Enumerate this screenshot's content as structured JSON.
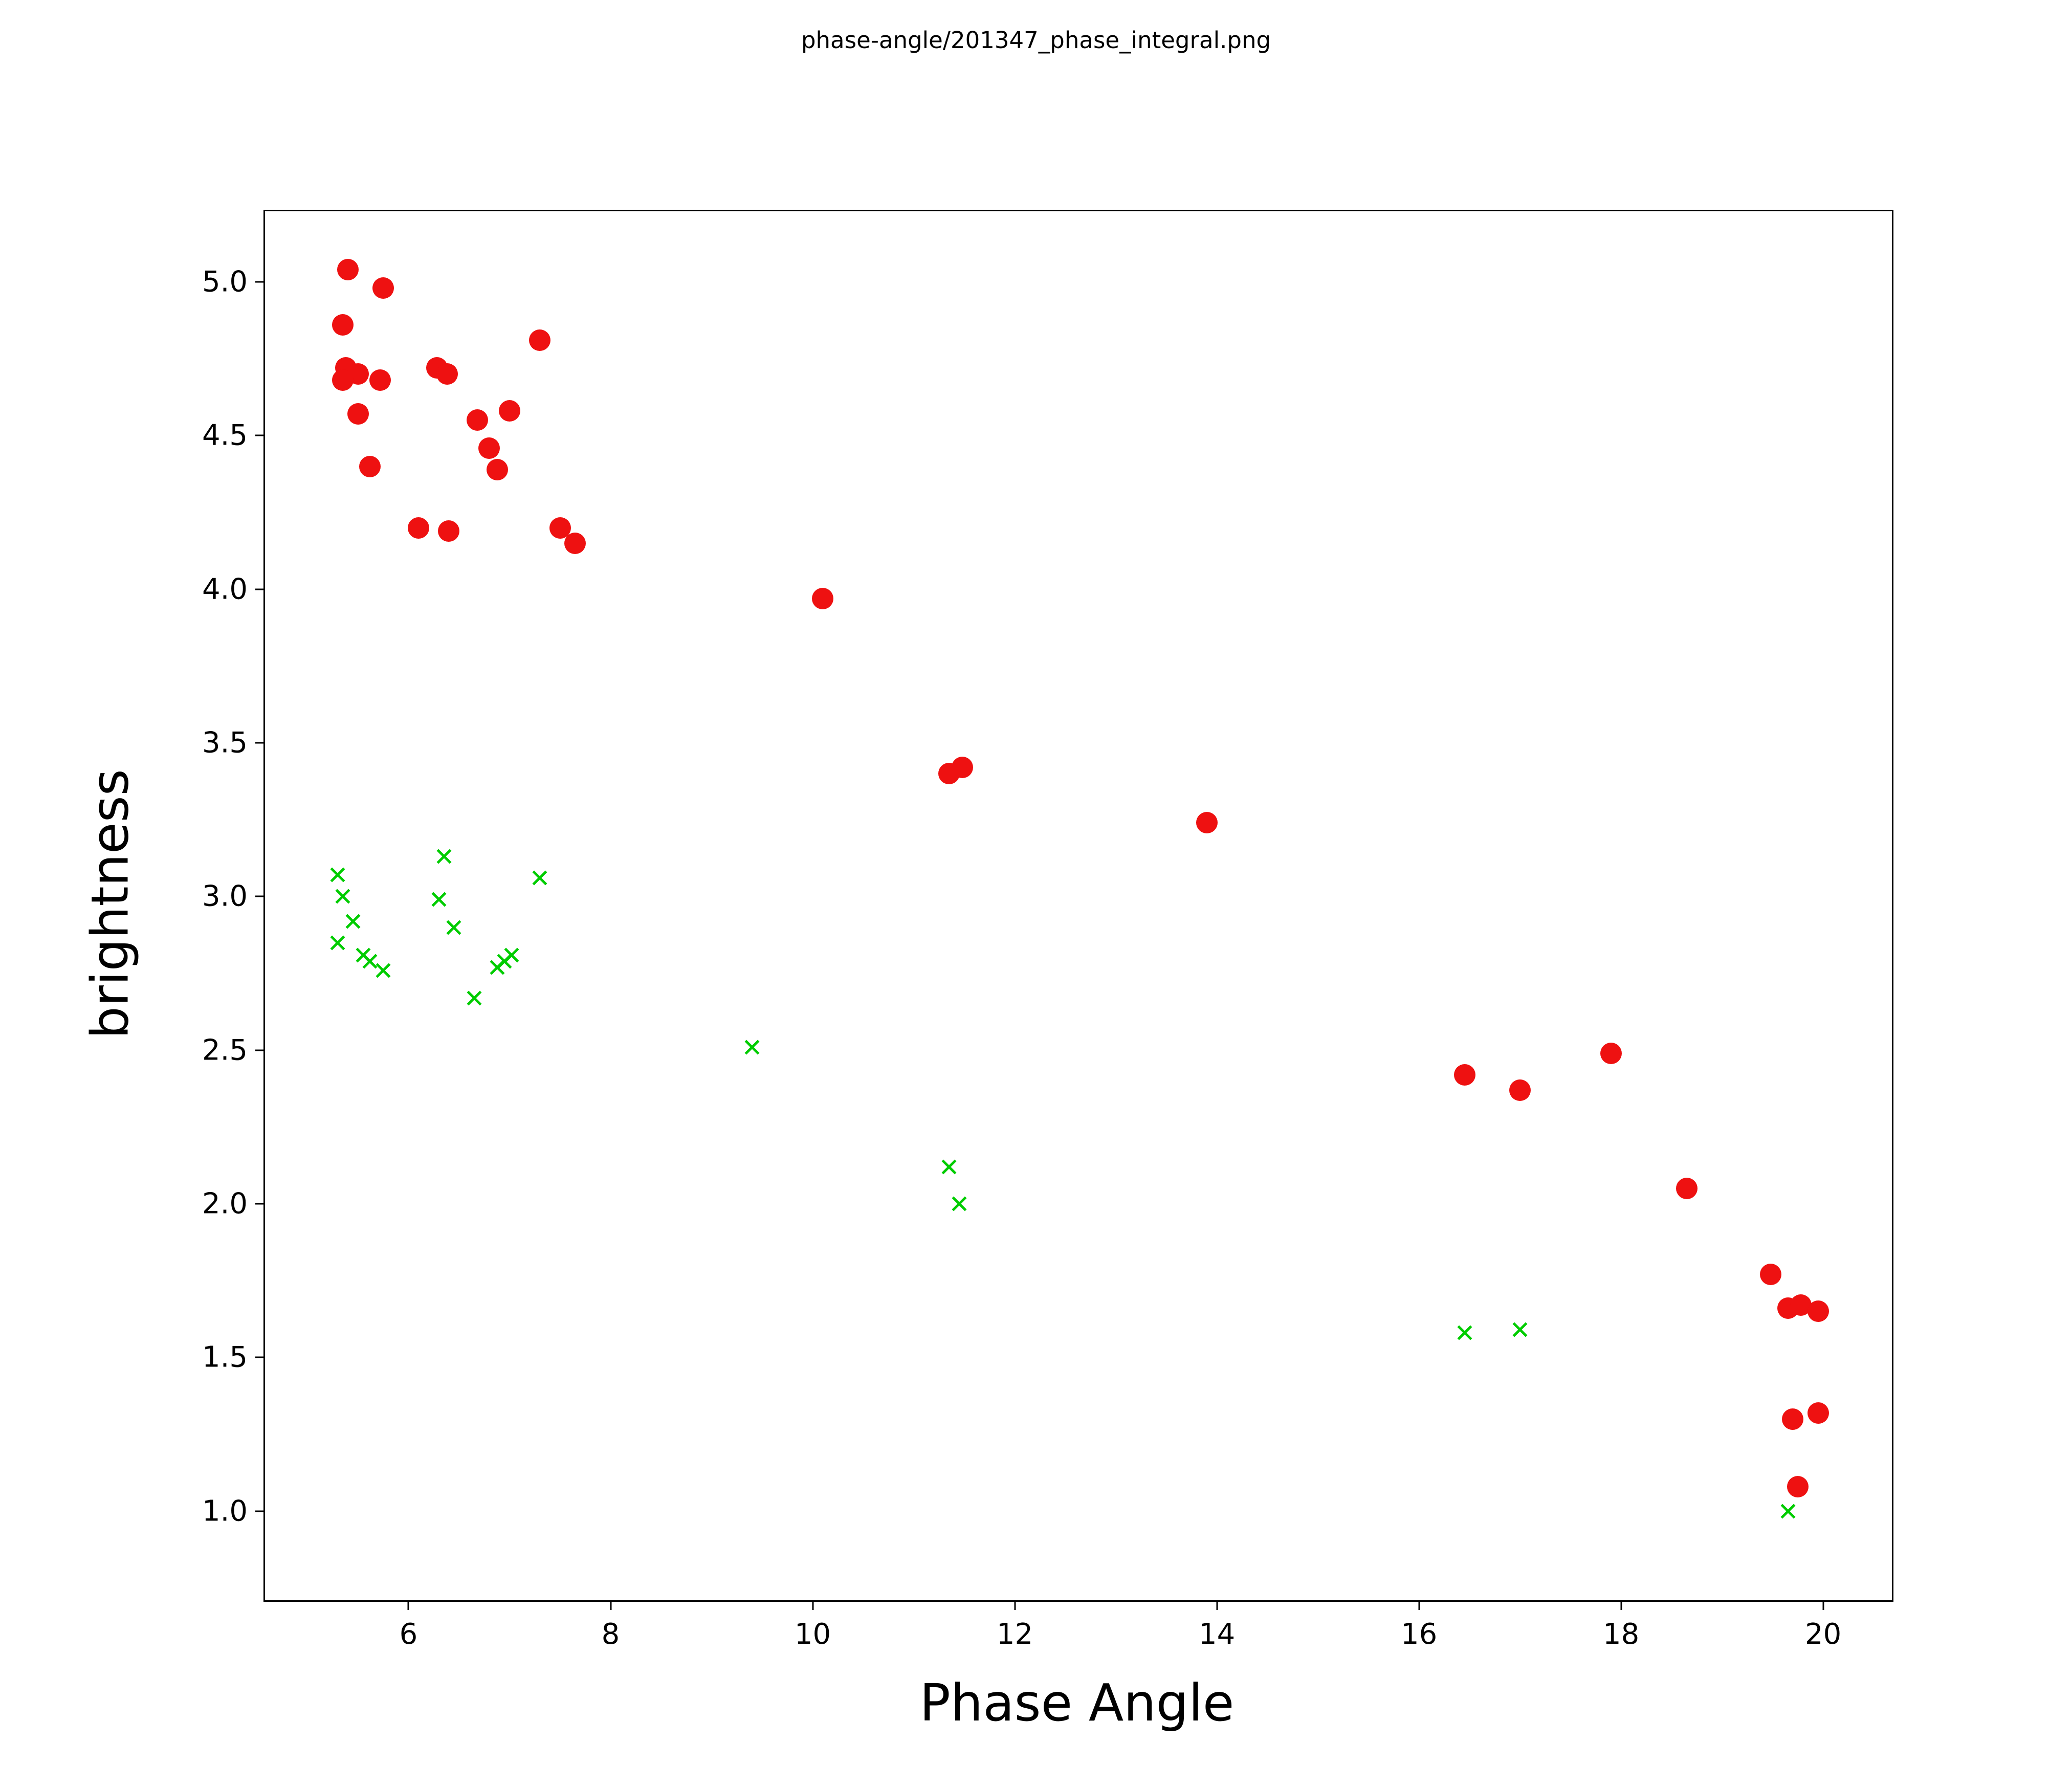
{
  "figure": {
    "title": "phase-angle/201347_phase_integral.png"
  },
  "chart_data": {
    "type": "scatter",
    "title": "phase-angle/201347_phase_integral.png",
    "xlabel": "Phase Angle",
    "ylabel": "brightness",
    "xlim": [
      4.58,
      20.68
    ],
    "ylim": [
      0.71,
      5.23
    ],
    "x_ticks": [
      6,
      8,
      10,
      12,
      14,
      16,
      18,
      20
    ],
    "y_ticks": [
      1.0,
      1.5,
      2.0,
      2.5,
      3.0,
      3.5,
      4.0,
      4.5,
      5.0
    ],
    "grid": false,
    "legend_position": "none",
    "series": [
      {
        "name": "red-circles",
        "marker": "circle",
        "color": "#ee1111",
        "points": [
          [
            5.4,
            5.04
          ],
          [
            5.75,
            4.98
          ],
          [
            5.35,
            4.86
          ],
          [
            7.3,
            4.81
          ],
          [
            5.38,
            4.72
          ],
          [
            5.5,
            4.7
          ],
          [
            5.35,
            4.68
          ],
          [
            5.72,
            4.68
          ],
          [
            6.28,
            4.72
          ],
          [
            6.38,
            4.7
          ],
          [
            5.5,
            4.57
          ],
          [
            6.68,
            4.55
          ],
          [
            7.0,
            4.58
          ],
          [
            6.8,
            4.46
          ],
          [
            5.62,
            4.4
          ],
          [
            6.88,
            4.39
          ],
          [
            6.1,
            4.2
          ],
          [
            6.4,
            4.19
          ],
          [
            7.5,
            4.2
          ],
          [
            7.65,
            4.15
          ],
          [
            10.1,
            3.97
          ],
          [
            11.35,
            3.4
          ],
          [
            11.48,
            3.42
          ],
          [
            13.9,
            3.24
          ],
          [
            16.45,
            2.42
          ],
          [
            17.0,
            2.37
          ],
          [
            17.9,
            2.49
          ],
          [
            18.65,
            2.05
          ],
          [
            19.48,
            1.77
          ],
          [
            19.65,
            1.66
          ],
          [
            19.78,
            1.67
          ],
          [
            19.95,
            1.65
          ],
          [
            19.7,
            1.3
          ],
          [
            19.95,
            1.32
          ],
          [
            19.75,
            1.08
          ]
        ]
      },
      {
        "name": "green-crosses",
        "marker": "x",
        "color": "#00cc00",
        "points": [
          [
            5.3,
            3.07
          ],
          [
            5.35,
            3.0
          ],
          [
            5.45,
            2.92
          ],
          [
            5.3,
            2.85
          ],
          [
            5.55,
            2.81
          ],
          [
            5.62,
            2.79
          ],
          [
            5.75,
            2.76
          ],
          [
            6.35,
            3.13
          ],
          [
            6.3,
            2.99
          ],
          [
            6.45,
            2.9
          ],
          [
            6.65,
            2.67
          ],
          [
            6.88,
            2.77
          ],
          [
            6.95,
            2.79
          ],
          [
            7.02,
            2.81
          ],
          [
            7.3,
            3.06
          ],
          [
            9.4,
            2.51
          ],
          [
            11.35,
            2.12
          ],
          [
            11.45,
            2.0
          ],
          [
            16.45,
            1.58
          ],
          [
            17.0,
            1.59
          ],
          [
            19.65,
            1.0
          ]
        ]
      }
    ]
  }
}
